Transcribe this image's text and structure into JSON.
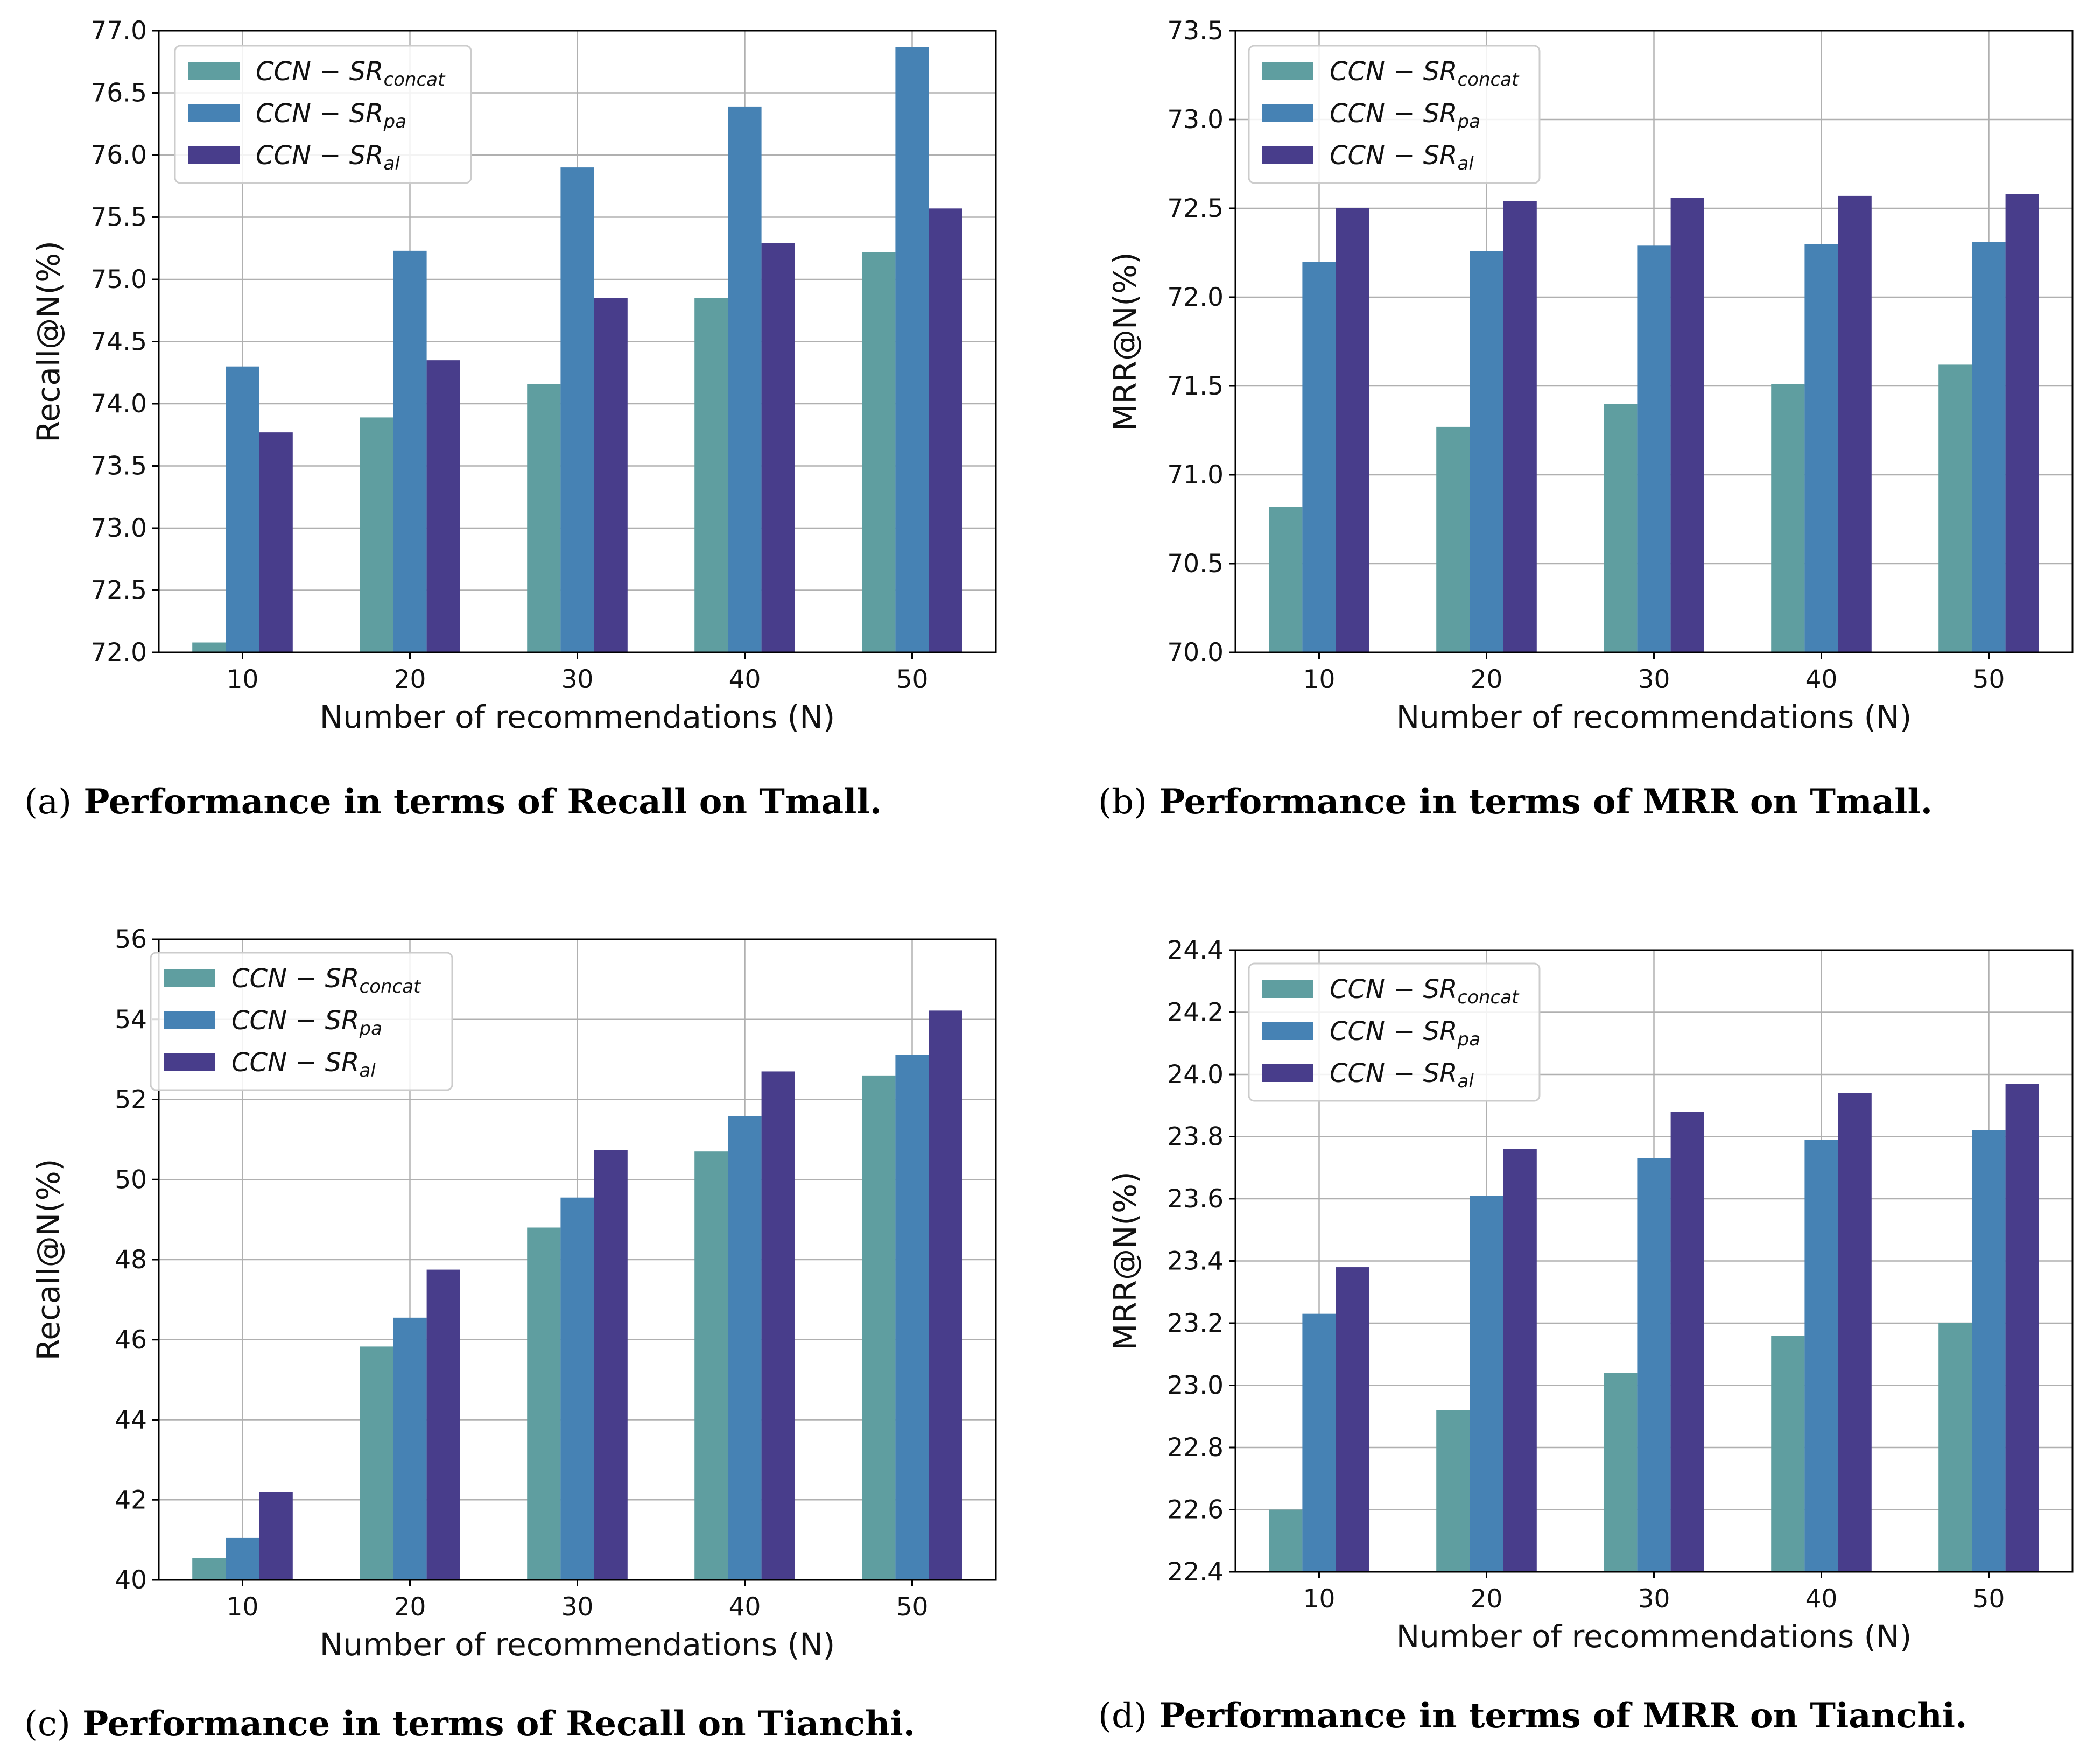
{
  "colors": {
    "concat": "#5f9ea0",
    "pa": "#4682b4",
    "al": "#483d8b",
    "grid": "#b0b0b0",
    "axis": "#000000"
  },
  "legend": [
    {
      "base": "CCN − SR",
      "sub": "concat"
    },
    {
      "base": "CCN − SR",
      "sub": "pa"
    },
    {
      "base": "CCN − SR",
      "sub": "al"
    }
  ],
  "captions": [
    {
      "label": "(a)",
      "text": "Performance in terms of Recall on Tmall."
    },
    {
      "label": "(b)",
      "text": "Performance in terms of MRR on Tmall."
    },
    {
      "label": "(c)",
      "text": "Performance in terms of Recall on Tianchi."
    },
    {
      "label": "(d)",
      "text": "Performance in terms of MRR on Tianchi."
    }
  ],
  "chart_data": [
    {
      "type": "bar",
      "categories": [
        "10",
        "20",
        "30",
        "40",
        "50"
      ],
      "xlabel": "Number of recommendations (N)",
      "ylabel": "Recall@N(%)",
      "ylim": [
        72.0,
        77.0
      ],
      "yticks": [
        72.0,
        72.5,
        73.0,
        73.5,
        74.0,
        74.5,
        75.0,
        75.5,
        76.0,
        76.5,
        77.0
      ],
      "ytick_labels": [
        "72.0",
        "72.5",
        "73.0",
        "73.5",
        "74.0",
        "74.5",
        "75.0",
        "75.5",
        "76.0",
        "76.5",
        "77.0"
      ],
      "grid": true,
      "legend_position": "top-left",
      "series": [
        {
          "values": [
            72.08,
            73.89,
            74.16,
            74.85,
            75.22
          ]
        },
        {
          "values": [
            74.3,
            75.23,
            75.9,
            76.39,
            76.87
          ]
        },
        {
          "values": [
            73.77,
            74.35,
            74.85,
            75.29,
            75.57
          ]
        }
      ]
    },
    {
      "type": "bar",
      "categories": [
        "10",
        "20",
        "30",
        "40",
        "50"
      ],
      "xlabel": "Number of recommendations (N)",
      "ylabel": "MRR@N(%)",
      "ylim": [
        70.0,
        73.5
      ],
      "yticks": [
        70.0,
        70.5,
        71.0,
        71.5,
        72.0,
        72.5,
        73.0,
        73.5
      ],
      "ytick_labels": [
        "70.0",
        "70.5",
        "71.0",
        "71.5",
        "72.0",
        "72.5",
        "73.0",
        "73.5"
      ],
      "grid": true,
      "legend_position": "top-left",
      "series": [
        {
          "values": [
            70.82,
            71.27,
            71.4,
            71.51,
            71.62
          ]
        },
        {
          "values": [
            72.2,
            72.26,
            72.29,
            72.3,
            72.31
          ]
        },
        {
          "values": [
            72.5,
            72.54,
            72.56,
            72.57,
            72.58
          ]
        }
      ]
    },
    {
      "type": "bar",
      "categories": [
        "10",
        "20",
        "30",
        "40",
        "50"
      ],
      "xlabel": "Number of recommendations (N)",
      "ylabel": "Recall@N(%)",
      "ylim": [
        40,
        56
      ],
      "yticks": [
        40,
        42,
        44,
        46,
        48,
        50,
        52,
        54,
        56
      ],
      "ytick_labels": [
        "40",
        "42",
        "44",
        "46",
        "48",
        "50",
        "52",
        "54",
        "56"
      ],
      "grid": true,
      "legend_position": "top-left",
      "series": [
        {
          "values": [
            40.55,
            45.83,
            48.8,
            50.7,
            52.6
          ]
        },
        {
          "values": [
            41.05,
            46.55,
            49.55,
            51.58,
            53.12
          ]
        },
        {
          "values": [
            42.2,
            47.75,
            50.73,
            52.7,
            54.22
          ]
        }
      ]
    },
    {
      "type": "bar",
      "categories": [
        "10",
        "20",
        "30",
        "40",
        "50"
      ],
      "xlabel": "Number of recommendations (N)",
      "ylabel": "MRR@N(%)",
      "ylim": [
        22.4,
        24.4
      ],
      "yticks": [
        22.4,
        22.6,
        22.8,
        23.0,
        23.2,
        23.4,
        23.6,
        23.8,
        24.0,
        24.2,
        24.4
      ],
      "ytick_labels": [
        "22.4",
        "22.6",
        "22.8",
        "23.0",
        "23.2",
        "23.4",
        "23.6",
        "23.8",
        "24.0",
        "24.2",
        "24.4"
      ],
      "grid": true,
      "legend_position": "top-left",
      "series": [
        {
          "values": [
            22.6,
            22.92,
            23.04,
            23.16,
            23.2
          ]
        },
        {
          "values": [
            23.23,
            23.61,
            23.73,
            23.79,
            23.82
          ]
        },
        {
          "values": [
            23.38,
            23.76,
            23.88,
            23.94,
            23.97
          ]
        }
      ]
    }
  ]
}
